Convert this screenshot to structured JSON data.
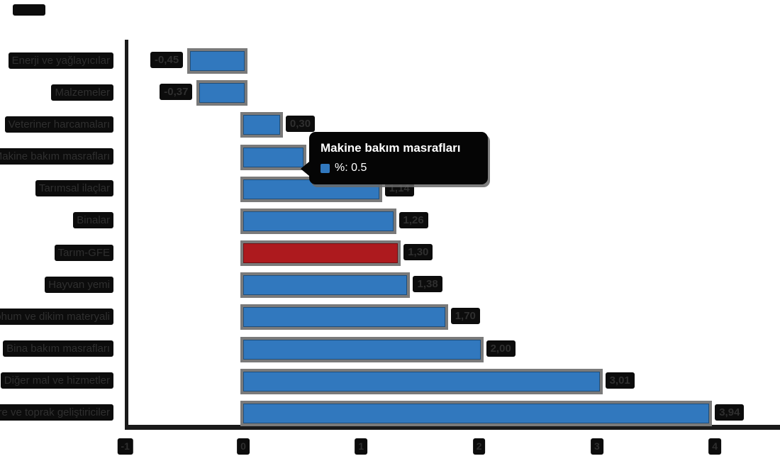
{
  "chart_data": {
    "type": "bar",
    "orientation": "horizontal",
    "title": "",
    "xlabel": "",
    "ylabel": "",
    "legend": "off",
    "grid": "off",
    "categories": [
      "Enerji ve yağlayıcılar",
      "Malzemeler",
      "Veteriner harcamaları",
      "Makine bakım masrafları",
      "Tarımsal ilaçlar",
      "Binalar",
      "Tarım-GFE",
      "Hayvan yemi",
      "Tohum ve dikim materyali",
      "Bina bakım masrafları",
      "Diğer mal ve hizmetler",
      "Gübre ve toprak geliştiriciler"
    ],
    "values": [
      -0.45,
      -0.37,
      0.3,
      0.5,
      1.14,
      1.26,
      1.3,
      1.38,
      1.7,
      2.0,
      3.01,
      3.94
    ],
    "value_labels": [
      "-0,45",
      "-0,37",
      "0,30",
      "0,50",
      "1,14",
      "1,26",
      "1,30",
      "1,38",
      "1,70",
      "2,00",
      "3,01",
      "3,94"
    ],
    "highlight_index": 6,
    "xticks": [
      -1,
      0,
      1,
      2,
      3,
      4
    ],
    "xlim": [
      -1,
      4.55
    ]
  },
  "tooltip": {
    "title": "Makine bakım masrafları",
    "value_text": "%: 0.5"
  },
  "colors": {
    "bar_blue": "#3178be",
    "bar_red": "#ad1a1e",
    "bar_shadow": "#7a7a7a",
    "label_box": "#0c0c0c",
    "label_text": "#2f2f2f",
    "axis": "#1a1a1a",
    "tooltip_bg": "#050505",
    "tooltip_text": "#ffffff"
  }
}
